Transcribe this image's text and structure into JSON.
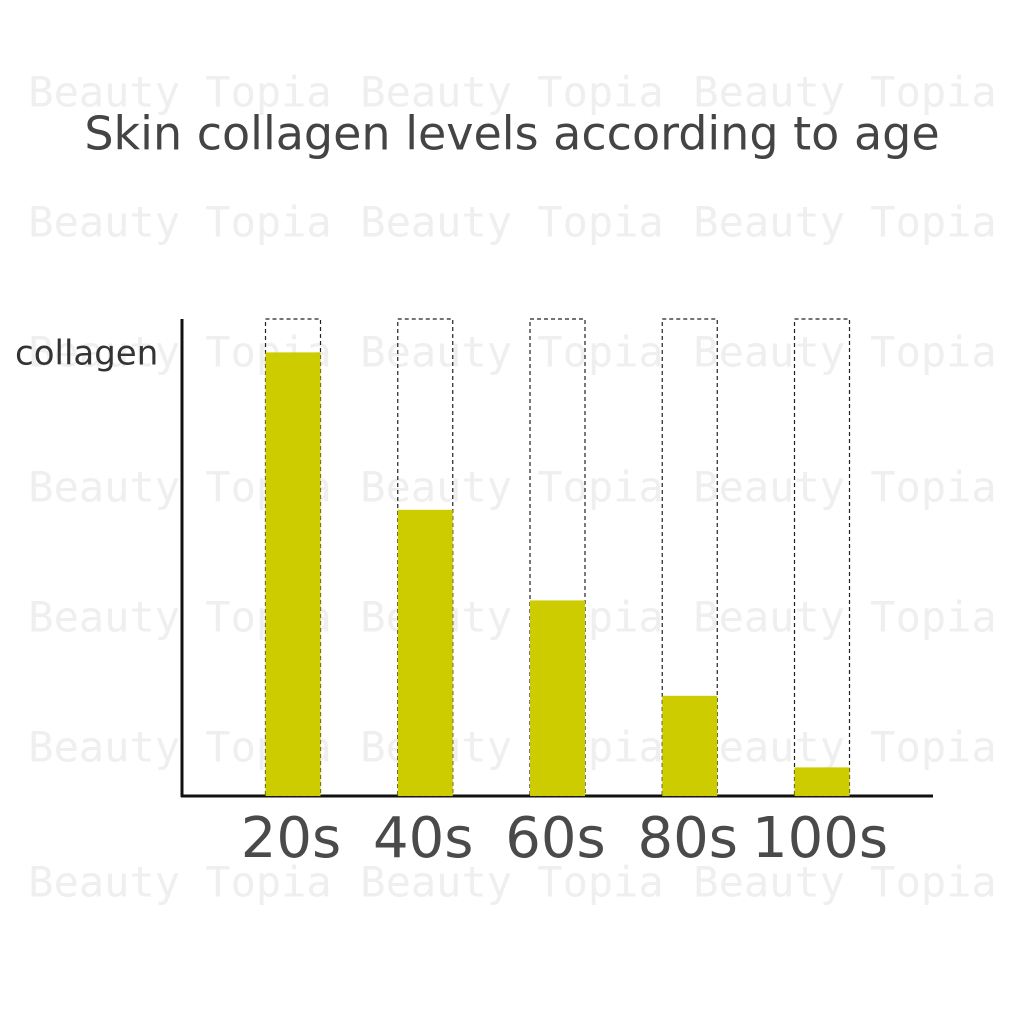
{
  "chart_data": {
    "type": "bar",
    "title": "Skin collagen levels according to age",
    "y_label": "collagen",
    "watermark": "Beauty Topia",
    "categories": [
      "20s",
      "40s",
      "60s",
      "80s",
      "100s"
    ],
    "values": [
      93,
      60,
      41,
      21,
      6
    ],
    "color": "#cccc00",
    "ylim": [
      0,
      100
    ],
    "outline_full": true
  }
}
